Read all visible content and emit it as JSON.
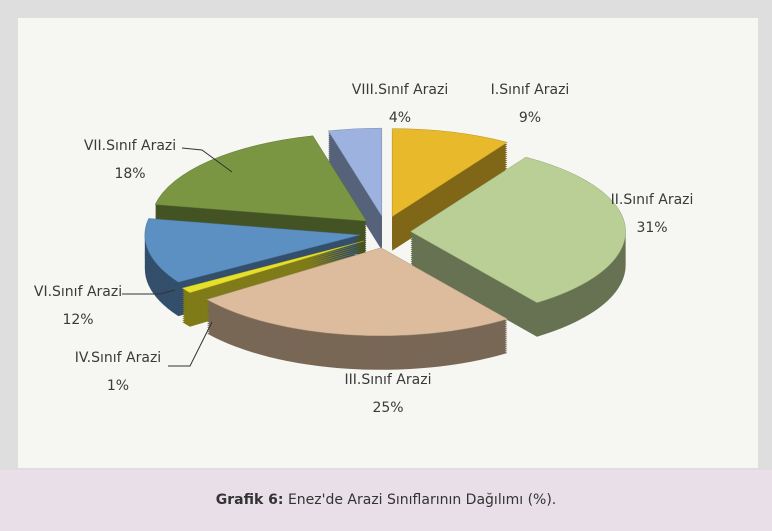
{
  "chart_data": {
    "type": "pie",
    "categories": [
      "I.Sınıf Arazi",
      "II.Sınıf Arazi",
      "III.Sınıf Arazi",
      "IV.Sınıf Arazi",
      "VI.Sınıf Arazi",
      "VII.Sınıf Arazi",
      "VIII.Sınıf Arazi"
    ],
    "values": [
      9,
      31,
      25,
      1,
      12,
      18,
      4
    ],
    "value_labels": [
      "9%",
      "31%",
      "25%",
      "1%",
      "12%",
      "18%",
      "4%"
    ],
    "colors": [
      "#e8b92a",
      "#b9cf95",
      "#dcbc9c",
      "#e6df2c",
      "#5c90c2",
      "#7b9642",
      "#9db2de"
    ]
  },
  "caption_label": "Grafik 6:",
  "caption": "Enez'de  Arazi Sınıflarının Dağılımı (%)."
}
